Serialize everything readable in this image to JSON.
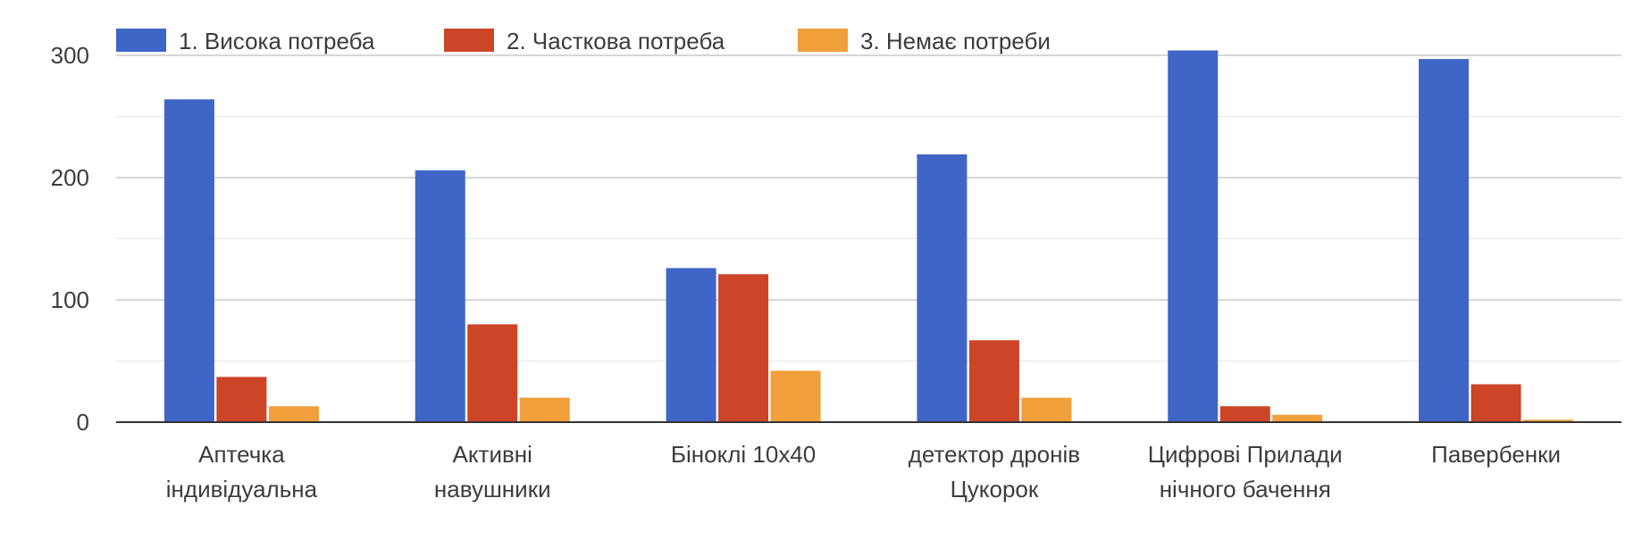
{
  "chart_data": {
    "type": "bar",
    "title": "",
    "xlabel": "",
    "ylabel": "",
    "ylim": [
      0,
      300
    ],
    "yticks": [
      0,
      100,
      200,
      300
    ],
    "grid": true,
    "legend_position": "top",
    "categories": [
      [
        "Аптечка",
        "індивідуальна"
      ],
      [
        "Активні",
        "навушники"
      ],
      [
        "Біноклі 10x40"
      ],
      [
        "детектор дронів",
        "Цукорок"
      ],
      [
        "Цифрові Прилади",
        "нічного бачення"
      ],
      [
        "Павербенки"
      ]
    ],
    "series": [
      {
        "name": "1. Висока потреба",
        "color": "#3f66c7",
        "values": [
          264,
          206,
          126,
          219,
          304,
          297
        ]
      },
      {
        "name": "2. Часткова потреба",
        "color": "#cc4527",
        "values": [
          37,
          80,
          121,
          67,
          13,
          31
        ]
      },
      {
        "name": "3. Немає потреби",
        "color": "#f09f3a",
        "values": [
          13,
          20,
          42,
          20,
          6,
          2
        ]
      }
    ]
  }
}
